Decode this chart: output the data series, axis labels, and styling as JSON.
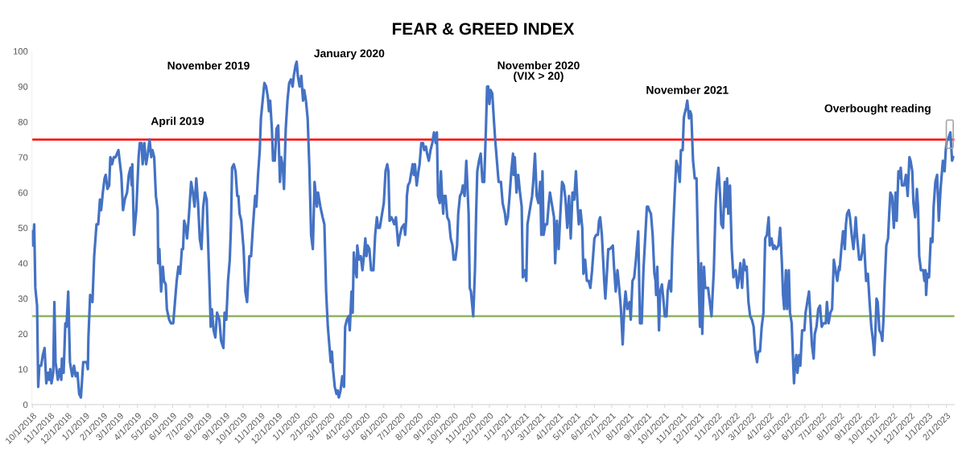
{
  "chart_data": {
    "type": "line",
    "title": "FEAR & GREED INDEX",
    "x": [
      "2018-10-01",
      "2018-10-02",
      "2018-10-04",
      "2018-10-06",
      "2018-10-09",
      "2018-10-11",
      "2018-10-13",
      "2018-10-16",
      "2018-10-19",
      "2018-10-22",
      "2018-10-25",
      "2018-10-28",
      "2018-10-30",
      "2018-11-01",
      "2018-11-03",
      "2018-11-06",
      "2018-11-08",
      "2018-11-10",
      "2018-11-14",
      "2018-11-17",
      "2018-11-20",
      "2018-11-21",
      "2018-11-24",
      "2018-11-27",
      "2018-11-29",
      "2018-12-02",
      "2018-12-05",
      "2018-12-09",
      "2018-12-12",
      "2018-12-15",
      "2018-12-18",
      "2018-12-21",
      "2018-12-24",
      "2018-12-28",
      "2019-01-03",
      "2019-01-05",
      "2019-01-06",
      "2019-01-09",
      "2019-01-13",
      "2019-01-16",
      "2019-01-20",
      "2019-01-23",
      "2019-01-26",
      "2019-01-28",
      "2019-01-31",
      "2019-02-03",
      "2019-02-05",
      "2019-02-08",
      "2019-02-11",
      "2019-02-13",
      "2019-02-16",
      "2019-02-19",
      "2019-02-22",
      "2019-02-27",
      "2019-03-04",
      "2019-03-07",
      "2019-03-10",
      "2019-03-14",
      "2019-03-17",
      "2019-03-20",
      "2019-03-22",
      "2019-03-23",
      "2019-03-26",
      "2019-03-30",
      "2019-04-03",
      "2019-04-05",
      "2019-04-08",
      "2019-04-10",
      "2019-04-13",
      "2019-04-16",
      "2019-04-19",
      "2019-04-22",
      "2019-04-25",
      "2019-04-27",
      "2019-04-30",
      "2019-05-03",
      "2019-05-06",
      "2019-05-07",
      "2019-05-09",
      "2019-05-12",
      "2019-05-15",
      "2019-05-17",
      "2019-05-20",
      "2019-05-22",
      "2019-05-26",
      "2019-05-29",
      "2019-06-02",
      "2019-06-05",
      "2019-06-08",
      "2019-06-11",
      "2019-06-14",
      "2019-06-17",
      "2019-06-19",
      "2019-06-21",
      "2019-06-24",
      "2019-06-26",
      "2019-06-29",
      "2019-07-03",
      "2019-07-06",
      "2019-07-09",
      "2019-07-12",
      "2019-07-15",
      "2019-07-18",
      "2019-07-21",
      "2019-07-24",
      "2019-07-27",
      "2019-07-30",
      "2019-08-01",
      "2019-08-04",
      "2019-08-06",
      "2019-08-08",
      "2019-08-11",
      "2019-08-14",
      "2019-08-17",
      "2019-08-21",
      "2019-08-24",
      "2019-08-28",
      "2019-08-30",
      "2019-09-02",
      "2019-09-05",
      "2019-09-08",
      "2019-09-10",
      "2019-09-12",
      "2019-09-15",
      "2019-09-18",
      "2019-09-21",
      "2019-09-23",
      "2019-09-25",
      "2019-09-28",
      "2019-10-02",
      "2019-10-05",
      "2019-10-08",
      "2019-10-10",
      "2019-10-12",
      "2019-10-15",
      "2019-10-18",
      "2019-10-22",
      "2019-10-24",
      "2019-10-27",
      "2019-10-30",
      "2019-11-01",
      "2019-11-04",
      "2019-11-07",
      "2019-11-10",
      "2019-11-13",
      "2019-11-15",
      "2019-11-17",
      "2019-11-20",
      "2019-11-22",
      "2019-11-25",
      "2019-11-28",
      "2019-12-01",
      "2019-12-04",
      "2019-12-06",
      "2019-12-09",
      "2019-12-11",
      "2019-12-14",
      "2019-12-17",
      "2019-12-20",
      "2019-12-23",
      "2019-12-26",
      "2019-12-28",
      "2019-12-31",
      "2020-01-02",
      "2020-01-04",
      "2020-01-07",
      "2020-01-10",
      "2020-01-13",
      "2020-01-15",
      "2020-01-18",
      "2020-01-21",
      "2020-01-24",
      "2020-01-27",
      "2020-01-30",
      "2020-02-02",
      "2020-02-06",
      "2020-02-08",
      "2020-02-12",
      "2020-02-16",
      "2020-02-19",
      "2020-02-22",
      "2020-02-25",
      "2020-03-01",
      "2020-03-03",
      "2020-03-05",
      "2020-03-08",
      "2020-03-11",
      "2020-03-13",
      "2020-03-15",
      "2020-03-18",
      "2020-03-21",
      "2020-03-24",
      "2020-03-26",
      "2020-03-29",
      "2020-04-01",
      "2020-04-03",
      "2020-04-06",
      "2020-04-08",
      "2020-04-10",
      "2020-04-13",
      "2020-04-15",
      "2020-04-16",
      "2020-04-19",
      "2020-04-22",
      "2020-04-25",
      "2020-04-28",
      "2020-04-30",
      "2020-05-02",
      "2020-05-04",
      "2020-05-07",
      "2020-05-10",
      "2020-05-14",
      "2020-05-17",
      "2020-05-20",
      "2020-05-22",
      "2020-05-25",
      "2020-05-28",
      "2020-06-01",
      "2020-06-04",
      "2020-06-07",
      "2020-06-09",
      "2020-06-11",
      "2020-06-14",
      "2020-06-17",
      "2020-06-19",
      "2020-06-22",
      "2020-06-26",
      "2020-06-29",
      "2020-07-02",
      "2020-07-06",
      "2020-07-08",
      "2020-07-10",
      "2020-07-11",
      "2020-07-13",
      "2020-07-16",
      "2020-07-19",
      "2020-07-21",
      "2020-07-23",
      "2020-07-25",
      "2020-07-28",
      "2020-07-31",
      "2020-08-02",
      "2020-08-05",
      "2020-08-08",
      "2020-08-10",
      "2020-08-13",
      "2020-08-15",
      "2020-08-18",
      "2020-08-21",
      "2020-08-24",
      "2020-08-27",
      "2020-08-30",
      "2020-09-01",
      "2020-09-03",
      "2020-09-06",
      "2020-09-08",
      "2020-09-10",
      "2020-09-12",
      "2020-09-13",
      "2020-09-16",
      "2020-09-19",
      "2020-09-22",
      "2020-09-25",
      "2020-09-28",
      "2020-09-30",
      "2020-10-03",
      "2020-10-06",
      "2020-10-08",
      "2020-10-11",
      "2020-10-14",
      "2020-10-16",
      "2020-10-19",
      "2020-10-22",
      "2020-10-26",
      "2020-10-28",
      "2020-10-30",
      "2020-11-03",
      "2020-11-06",
      "2020-11-08",
      "2020-11-10",
      "2020-11-13",
      "2020-11-16",
      "2020-11-19",
      "2020-11-22",
      "2020-11-25",
      "2020-11-27",
      "2020-11-29",
      "2020-12-01",
      "2020-12-03",
      "2020-12-06",
      "2020-12-09",
      "2020-12-11",
      "2020-12-14",
      "2020-12-17",
      "2020-12-21",
      "2020-12-24",
      "2020-12-28",
      "2020-12-30",
      "2021-01-02",
      "2021-01-05",
      "2021-01-08",
      "2021-01-11",
      "2021-01-12",
      "2021-01-14",
      "2021-01-17",
      "2021-01-20",
      "2021-01-23",
      "2021-01-26",
      "2021-01-28",
      "2021-02-01",
      "2021-02-03",
      "2021-02-05",
      "2021-02-07",
      "2021-02-10",
      "2021-02-13",
      "2021-02-15",
      "2021-02-18",
      "2021-02-21",
      "2021-02-24",
      "2021-02-27",
      "2021-03-01",
      "2021-03-03",
      "2021-03-05",
      "2021-03-08",
      "2021-03-11",
      "2021-03-14",
      "2021-03-16",
      "2021-03-20",
      "2021-03-23",
      "2021-03-25",
      "2021-03-28",
      "2021-03-31",
      "2021-04-03",
      "2021-04-06",
      "2021-04-09",
      "2021-04-12",
      "2021-04-15",
      "2021-04-18",
      "2021-04-21",
      "2021-04-24",
      "2021-04-27",
      "2021-04-30",
      "2021-05-03",
      "2021-05-05",
      "2021-05-08",
      "2021-05-11",
      "2021-05-13",
      "2021-05-16",
      "2021-05-19",
      "2021-05-22",
      "2021-05-25",
      "2021-05-28",
      "2021-06-01",
      "2021-06-04",
      "2021-06-07",
      "2021-06-09",
      "2021-06-11",
      "2021-06-14",
      "2021-06-18",
      "2021-06-20",
      "2021-06-23",
      "2021-06-25",
      "2021-06-28",
      "2021-07-03",
      "2021-07-05",
      "2021-07-08",
      "2021-07-11",
      "2021-07-14",
      "2021-07-17",
      "2021-07-20",
      "2021-07-23",
      "2021-07-25",
      "2021-07-28",
      "2021-08-01",
      "2021-08-03",
      "2021-08-06",
      "2021-08-09",
      "2021-08-12",
      "2021-08-16",
      "2021-08-19",
      "2021-08-22",
      "2021-08-25",
      "2021-08-31",
      "2021-09-02",
      "2021-09-04",
      "2021-09-07",
      "2021-09-10",
      "2021-09-13",
      "2021-09-15",
      "2021-09-16",
      "2021-09-18",
      "2021-09-21",
      "2021-09-23",
      "2021-09-26",
      "2021-09-29",
      "2021-10-01",
      "2021-10-04",
      "2021-10-06",
      "2021-10-09",
      "2021-10-12",
      "2021-10-14",
      "2021-10-18",
      "2021-10-21",
      "2021-10-24",
      "2021-10-27",
      "2021-10-29",
      "2021-11-01",
      "2021-11-03",
      "2021-11-04",
      "2021-11-07",
      "2021-11-09",
      "2021-11-12",
      "2021-11-14",
      "2021-11-16",
      "2021-11-19",
      "2021-11-22",
      "2021-11-25",
      "2021-11-29",
      "2021-12-01",
      "2021-12-03",
      "2021-12-05",
      "2021-12-08",
      "2021-12-10",
      "2021-12-15",
      "2021-12-18",
      "2021-12-21",
      "2021-12-25",
      "2021-12-28",
      "2021-12-30",
      "2022-01-02",
      "2022-01-05",
      "2022-01-07",
      "2022-01-10",
      "2022-01-13",
      "2022-01-15",
      "2022-01-17",
      "2022-01-19",
      "2022-01-22",
      "2022-01-25",
      "2022-01-28",
      "2022-02-01",
      "2022-02-04",
      "2022-02-06",
      "2022-02-09",
      "2022-02-12",
      "2022-02-15",
      "2022-02-18",
      "2022-02-20",
      "2022-02-23",
      "2022-02-26",
      "2022-03-01",
      "2022-03-04",
      "2022-03-07",
      "2022-03-10",
      "2022-03-12",
      "2022-03-15",
      "2022-03-18",
      "2022-03-21",
      "2022-03-24",
      "2022-03-27",
      "2022-03-30",
      "2022-04-01",
      "2022-04-04",
      "2022-04-07",
      "2022-04-09",
      "2022-04-12",
      "2022-04-16",
      "2022-04-19",
      "2022-04-22",
      "2022-04-24",
      "2022-04-26",
      "2022-04-29",
      "2022-05-01",
      "2022-05-04",
      "2022-05-06",
      "2022-05-09",
      "2022-05-11",
      "2022-05-13",
      "2022-05-15",
      "2022-05-17",
      "2022-05-19",
      "2022-05-22",
      "2022-05-24",
      "2022-05-27",
      "2022-05-31",
      "2022-06-02",
      "2022-06-05",
      "2022-06-08",
      "2022-06-10",
      "2022-06-13",
      "2022-06-16",
      "2022-06-18",
      "2022-06-21",
      "2022-06-24",
      "2022-06-27",
      "2022-06-30",
      "2022-07-03",
      "2022-07-07",
      "2022-07-09",
      "2022-07-12",
      "2022-07-15",
      "2022-07-18",
      "2022-07-21",
      "2022-07-24",
      "2022-07-27",
      "2022-07-30",
      "2022-07-31",
      "2022-08-03",
      "2022-08-06",
      "2022-08-07",
      "2022-08-09",
      "2022-08-11",
      "2022-08-13",
      "2022-08-16",
      "2022-08-18",
      "2022-08-21",
      "2022-08-24",
      "2022-08-26",
      "2022-08-28",
      "2022-08-30",
      "2022-09-03",
      "2022-09-06",
      "2022-09-09",
      "2022-09-11",
      "2022-09-13",
      "2022-09-15",
      "2022-09-18",
      "2022-09-21",
      "2022-09-24",
      "2022-09-27",
      "2022-09-29",
      "2022-10-01",
      "2022-10-03",
      "2022-10-05",
      "2022-10-08",
      "2022-10-11",
      "2022-10-13",
      "2022-10-15",
      "2022-10-17",
      "2022-10-20",
      "2022-10-23",
      "2022-10-25",
      "2022-10-27",
      "2022-10-30",
      "2022-11-02",
      "2022-11-05",
      "2022-11-07",
      "2022-11-10",
      "2022-11-12",
      "2022-11-14",
      "2022-11-16",
      "2022-11-20",
      "2022-11-23",
      "2022-11-26",
      "2022-11-29",
      "2022-12-01",
      "2022-12-04",
      "2022-12-06",
      "2022-12-09",
      "2022-12-12",
      "2022-12-14",
      "2022-12-16",
      "2022-12-19",
      "2022-12-23",
      "2022-12-25",
      "2022-12-27",
      "2022-12-28",
      "2022-12-30",
      "2023-01-02",
      "2023-01-05",
      "2023-01-08",
      "2023-01-10",
      "2023-01-13",
      "2023-01-16",
      "2023-01-19",
      "2023-01-22",
      "2023-01-26",
      "2023-01-29",
      "2023-01-31",
      "2023-02-02",
      "2023-02-04",
      "2023-02-06",
      "2023-02-08",
      "2023-02-11",
      "2023-02-13"
    ],
    "series": [
      {
        "color": "#4472c4",
        "values": [
          49,
          45,
          51,
          33,
          28,
          5,
          11,
          11,
          14,
          16,
          6,
          9,
          7,
          10,
          6,
          9,
          29,
          12,
          7,
          10,
          7,
          13,
          9,
          23,
          22,
          32,
          12,
          8,
          11,
          8,
          9,
          3,
          2,
          12,
          12,
          10,
          19,
          31,
          29,
          42,
          51,
          51,
          58,
          55,
          60,
          64,
          65,
          61,
          62,
          70,
          68,
          70,
          70,
          72,
          65,
          55,
          58,
          60,
          65,
          67,
          62,
          68,
          48,
          55,
          70,
          74,
          74,
          68,
          74,
          68,
          71,
          75,
          70,
          72,
          70,
          59,
          55,
          40,
          44,
          32,
          39,
          35,
          34,
          27,
          24,
          23,
          23,
          29,
          35,
          39,
          37,
          44,
          44,
          52,
          50,
          47,
          53,
          63,
          60,
          56,
          64,
          57,
          47,
          44,
          56,
          60,
          58,
          48,
          33,
          22,
          27,
          21,
          19,
          26,
          24,
          18,
          16,
          26,
          24,
          35,
          41,
          50,
          67,
          68,
          66,
          59,
          59,
          54,
          52,
          44,
          32,
          29,
          35,
          42,
          42,
          50,
          59,
          56,
          65,
          72,
          81,
          86,
          91,
          90,
          87,
          83,
          86,
          78,
          69,
          69,
          78,
          79,
          63,
          70,
          67,
          61,
          78,
          86,
          91,
          92,
          90,
          93,
          96,
          97,
          93,
          90,
          93,
          86,
          89,
          86,
          81,
          67,
          48,
          44,
          63,
          56,
          60,
          56,
          53,
          51,
          32,
          22,
          12,
          15,
          10,
          5,
          3,
          4,
          2,
          4,
          8,
          5,
          22,
          24,
          25,
          21,
          32,
          26,
          43,
          38,
          36,
          45,
          41,
          42,
          38,
          43,
          47,
          42,
          45,
          44,
          38,
          38,
          48,
          53,
          50,
          50,
          53,
          57,
          66,
          68,
          66,
          52,
          53,
          52,
          51,
          53,
          45,
          48,
          50,
          51,
          48,
          53,
          59,
          62,
          63,
          66,
          68,
          65,
          68,
          62,
          66,
          68,
          74,
          74,
          72,
          73,
          71,
          69,
          72,
          74,
          77,
          74,
          77,
          59,
          57,
          66,
          59,
          54,
          59,
          59,
          53,
          52,
          47,
          45,
          41,
          41,
          45,
          54,
          59,
          60,
          62,
          59,
          69,
          54,
          33,
          32,
          25,
          38,
          54,
          66,
          69,
          71,
          63,
          63,
          78,
          90,
          90,
          85,
          89,
          88,
          80,
          75,
          69,
          63,
          63,
          57,
          54,
          51,
          53,
          59,
          66,
          71,
          65,
          70,
          60,
          65,
          60,
          56,
          36,
          38,
          35,
          51,
          53,
          56,
          59,
          63,
          71,
          59,
          57,
          63,
          48,
          66,
          48,
          51,
          51,
          57,
          60,
          56,
          53,
          40,
          52,
          44,
          54,
          63,
          62,
          58,
          50,
          59,
          47,
          60,
          58,
          66,
          56,
          51,
          55,
          50,
          37,
          41,
          35,
          35,
          33,
          38,
          47,
          48,
          48,
          52,
          53,
          48,
          35,
          30,
          38,
          44,
          44,
          45,
          39,
          32,
          38,
          33,
          27,
          17,
          28,
          32,
          27,
          29,
          24,
          35,
          36,
          41,
          49,
          23,
          23,
          38,
          56,
          56,
          55,
          54,
          48,
          37,
          35,
          31,
          39,
          21,
          32,
          34,
          29,
          25,
          25,
          32,
          35,
          32,
          44,
          59,
          69,
          67,
          63,
          72,
          72,
          81,
          82,
          84,
          86,
          81,
          83,
          82,
          69,
          64,
          64,
          33,
          22,
          40,
          20,
          39,
          33,
          33,
          29,
          25,
          38,
          56,
          62,
          67,
          59,
          51,
          50,
          63,
          56,
          64,
          54,
          62,
          44,
          36,
          38,
          33,
          35,
          40,
          33,
          41,
          38,
          39,
          29,
          25,
          24,
          22,
          15,
          12,
          15,
          15,
          22,
          26,
          47,
          48,
          53,
          45,
          47,
          44,
          45,
          44,
          45,
          50,
          40,
          31,
          27,
          38,
          27,
          38,
          26,
          23,
          14,
          6,
          12,
          14,
          9,
          14,
          11,
          21,
          21,
          26,
          29,
          32,
          26,
          17,
          13,
          20,
          22,
          27,
          28,
          22,
          23,
          23,
          29,
          23,
          26,
          27,
          41,
          38,
          35,
          39,
          38,
          44,
          49,
          49,
          44,
          51,
          54,
          55,
          53,
          48,
          44,
          48,
          53,
          48,
          41,
          41,
          44,
          48,
          41,
          35,
          37,
          29,
          22,
          18,
          14,
          20,
          30,
          29,
          21,
          20,
          18,
          24,
          34,
          45,
          47,
          54,
          60,
          59,
          50,
          60,
          52,
          66,
          64,
          67,
          62,
          62,
          65,
          59,
          70,
          69,
          66,
          57,
          53,
          61,
          56,
          42,
          38,
          38,
          35,
          38,
          31,
          37,
          36,
          47,
          46,
          56,
          63,
          65,
          52,
          61,
          69,
          66,
          72,
          75,
          75,
          76,
          77,
          69,
          70
        ]
      }
    ],
    "xlim": [
      "2018-09-30",
      "2023-02-15"
    ],
    "xticks": [
      {
        "value": "2018-10-01",
        "label": "10/1/2018"
      },
      {
        "value": "2018-11-01",
        "label": "11/1/2018"
      },
      {
        "value": "2018-12-01",
        "label": "12/1/2018"
      },
      {
        "value": "2019-01-01",
        "label": "1/1/2019"
      },
      {
        "value": "2019-02-01",
        "label": "2/1/2019"
      },
      {
        "value": "2019-03-01",
        "label": "3/1/2019"
      },
      {
        "value": "2019-04-01",
        "label": "4/1/2019"
      },
      {
        "value": "2019-05-01",
        "label": "5/1/2019"
      },
      {
        "value": "2019-06-01",
        "label": "6/1/2019"
      },
      {
        "value": "2019-07-01",
        "label": "7/1/2019"
      },
      {
        "value": "2019-08-01",
        "label": "8/1/2019"
      },
      {
        "value": "2019-09-01",
        "label": "9/1/2019"
      },
      {
        "value": "2019-10-01",
        "label": "10/1/2019"
      },
      {
        "value": "2019-11-01",
        "label": "11/1/2019"
      },
      {
        "value": "2019-12-01",
        "label": "12/1/2019"
      },
      {
        "value": "2020-01-01",
        "label": "1/1/2020"
      },
      {
        "value": "2020-02-01",
        "label": "2/1/2020"
      },
      {
        "value": "2020-03-01",
        "label": "3/1/2020"
      },
      {
        "value": "2020-04-01",
        "label": "4/1/2020"
      },
      {
        "value": "2020-05-01",
        "label": "5/1/2020"
      },
      {
        "value": "2020-06-01",
        "label": "6/1/2020"
      },
      {
        "value": "2020-07-01",
        "label": "7/1/2020"
      },
      {
        "value": "2020-08-01",
        "label": "8/1/2020"
      },
      {
        "value": "2020-09-01",
        "label": "9/1/2020"
      },
      {
        "value": "2020-10-01",
        "label": "10/1/2020"
      },
      {
        "value": "2020-11-01",
        "label": "11/1/2020"
      },
      {
        "value": "2020-12-01",
        "label": "12/1/2020"
      },
      {
        "value": "2021-01-01",
        "label": "1/1/2021"
      },
      {
        "value": "2021-02-01",
        "label": "2/1/2021"
      },
      {
        "value": "2021-03-01",
        "label": "3/1/2021"
      },
      {
        "value": "2021-04-01",
        "label": "4/1/2021"
      },
      {
        "value": "2021-05-01",
        "label": "5/1/2021"
      },
      {
        "value": "2021-06-01",
        "label": "6/1/2021"
      },
      {
        "value": "2021-07-01",
        "label": "7/1/2021"
      },
      {
        "value": "2021-08-01",
        "label": "8/1/2021"
      },
      {
        "value": "2021-09-01",
        "label": "9/1/2021"
      },
      {
        "value": "2021-10-01",
        "label": "10/1/2021"
      },
      {
        "value": "2021-11-01",
        "label": "11/1/2021"
      },
      {
        "value": "2021-12-01",
        "label": "12/1/2021"
      },
      {
        "value": "2022-01-01",
        "label": "1/1/2022"
      },
      {
        "value": "2022-02-01",
        "label": "2/1/2022"
      },
      {
        "value": "2022-03-01",
        "label": "3/1/2022"
      },
      {
        "value": "2022-04-01",
        "label": "4/1/2022"
      },
      {
        "value": "2022-05-01",
        "label": "5/1/2022"
      },
      {
        "value": "2022-06-01",
        "label": "6/1/2022"
      },
      {
        "value": "2022-07-01",
        "label": "7/1/2022"
      },
      {
        "value": "2022-08-01",
        "label": "8/1/2022"
      },
      {
        "value": "2022-09-01",
        "label": "9/1/2022"
      },
      {
        "value": "2022-10-01",
        "label": "10/1/2022"
      },
      {
        "value": "2022-11-01",
        "label": "11/1/2022"
      },
      {
        "value": "2022-12-01",
        "label": "12/1/2022"
      },
      {
        "value": "2023-01-01",
        "label": "1/1/2023"
      },
      {
        "value": "2023-02-01",
        "label": "2/1/2023"
      }
    ],
    "ylim": [
      0,
      100
    ],
    "yticks": [
      0,
      10,
      20,
      30,
      40,
      50,
      60,
      70,
      80,
      90,
      100
    ],
    "grid": false,
    "legend": false,
    "marker": "none",
    "line_style": "solid",
    "ref_lines": [
      {
        "axis": "y",
        "value": 75,
        "color": "#ff0000",
        "line_style": "solid"
      },
      {
        "axis": "y",
        "value": 25,
        "color": "#8db360",
        "line_style": "solid"
      }
    ],
    "annotations": [
      {
        "text": "April 2019",
        "x": "2019-04-22",
        "y": 75
      },
      {
        "text": "November 2019",
        "x": "2019-11-07",
        "y": 91
      },
      {
        "text": "January 2020",
        "x": "2020-01-02",
        "y": 97
      },
      {
        "text": "November 2020\n(VIX > 20)",
        "x": "2020-11-27",
        "y": 90
      },
      {
        "text": "November 2021",
        "x": "2021-11-09",
        "y": 86
      },
      {
        "text": "Overbought reading",
        "x": "2023-02-08",
        "y": 77
      }
    ]
  }
}
